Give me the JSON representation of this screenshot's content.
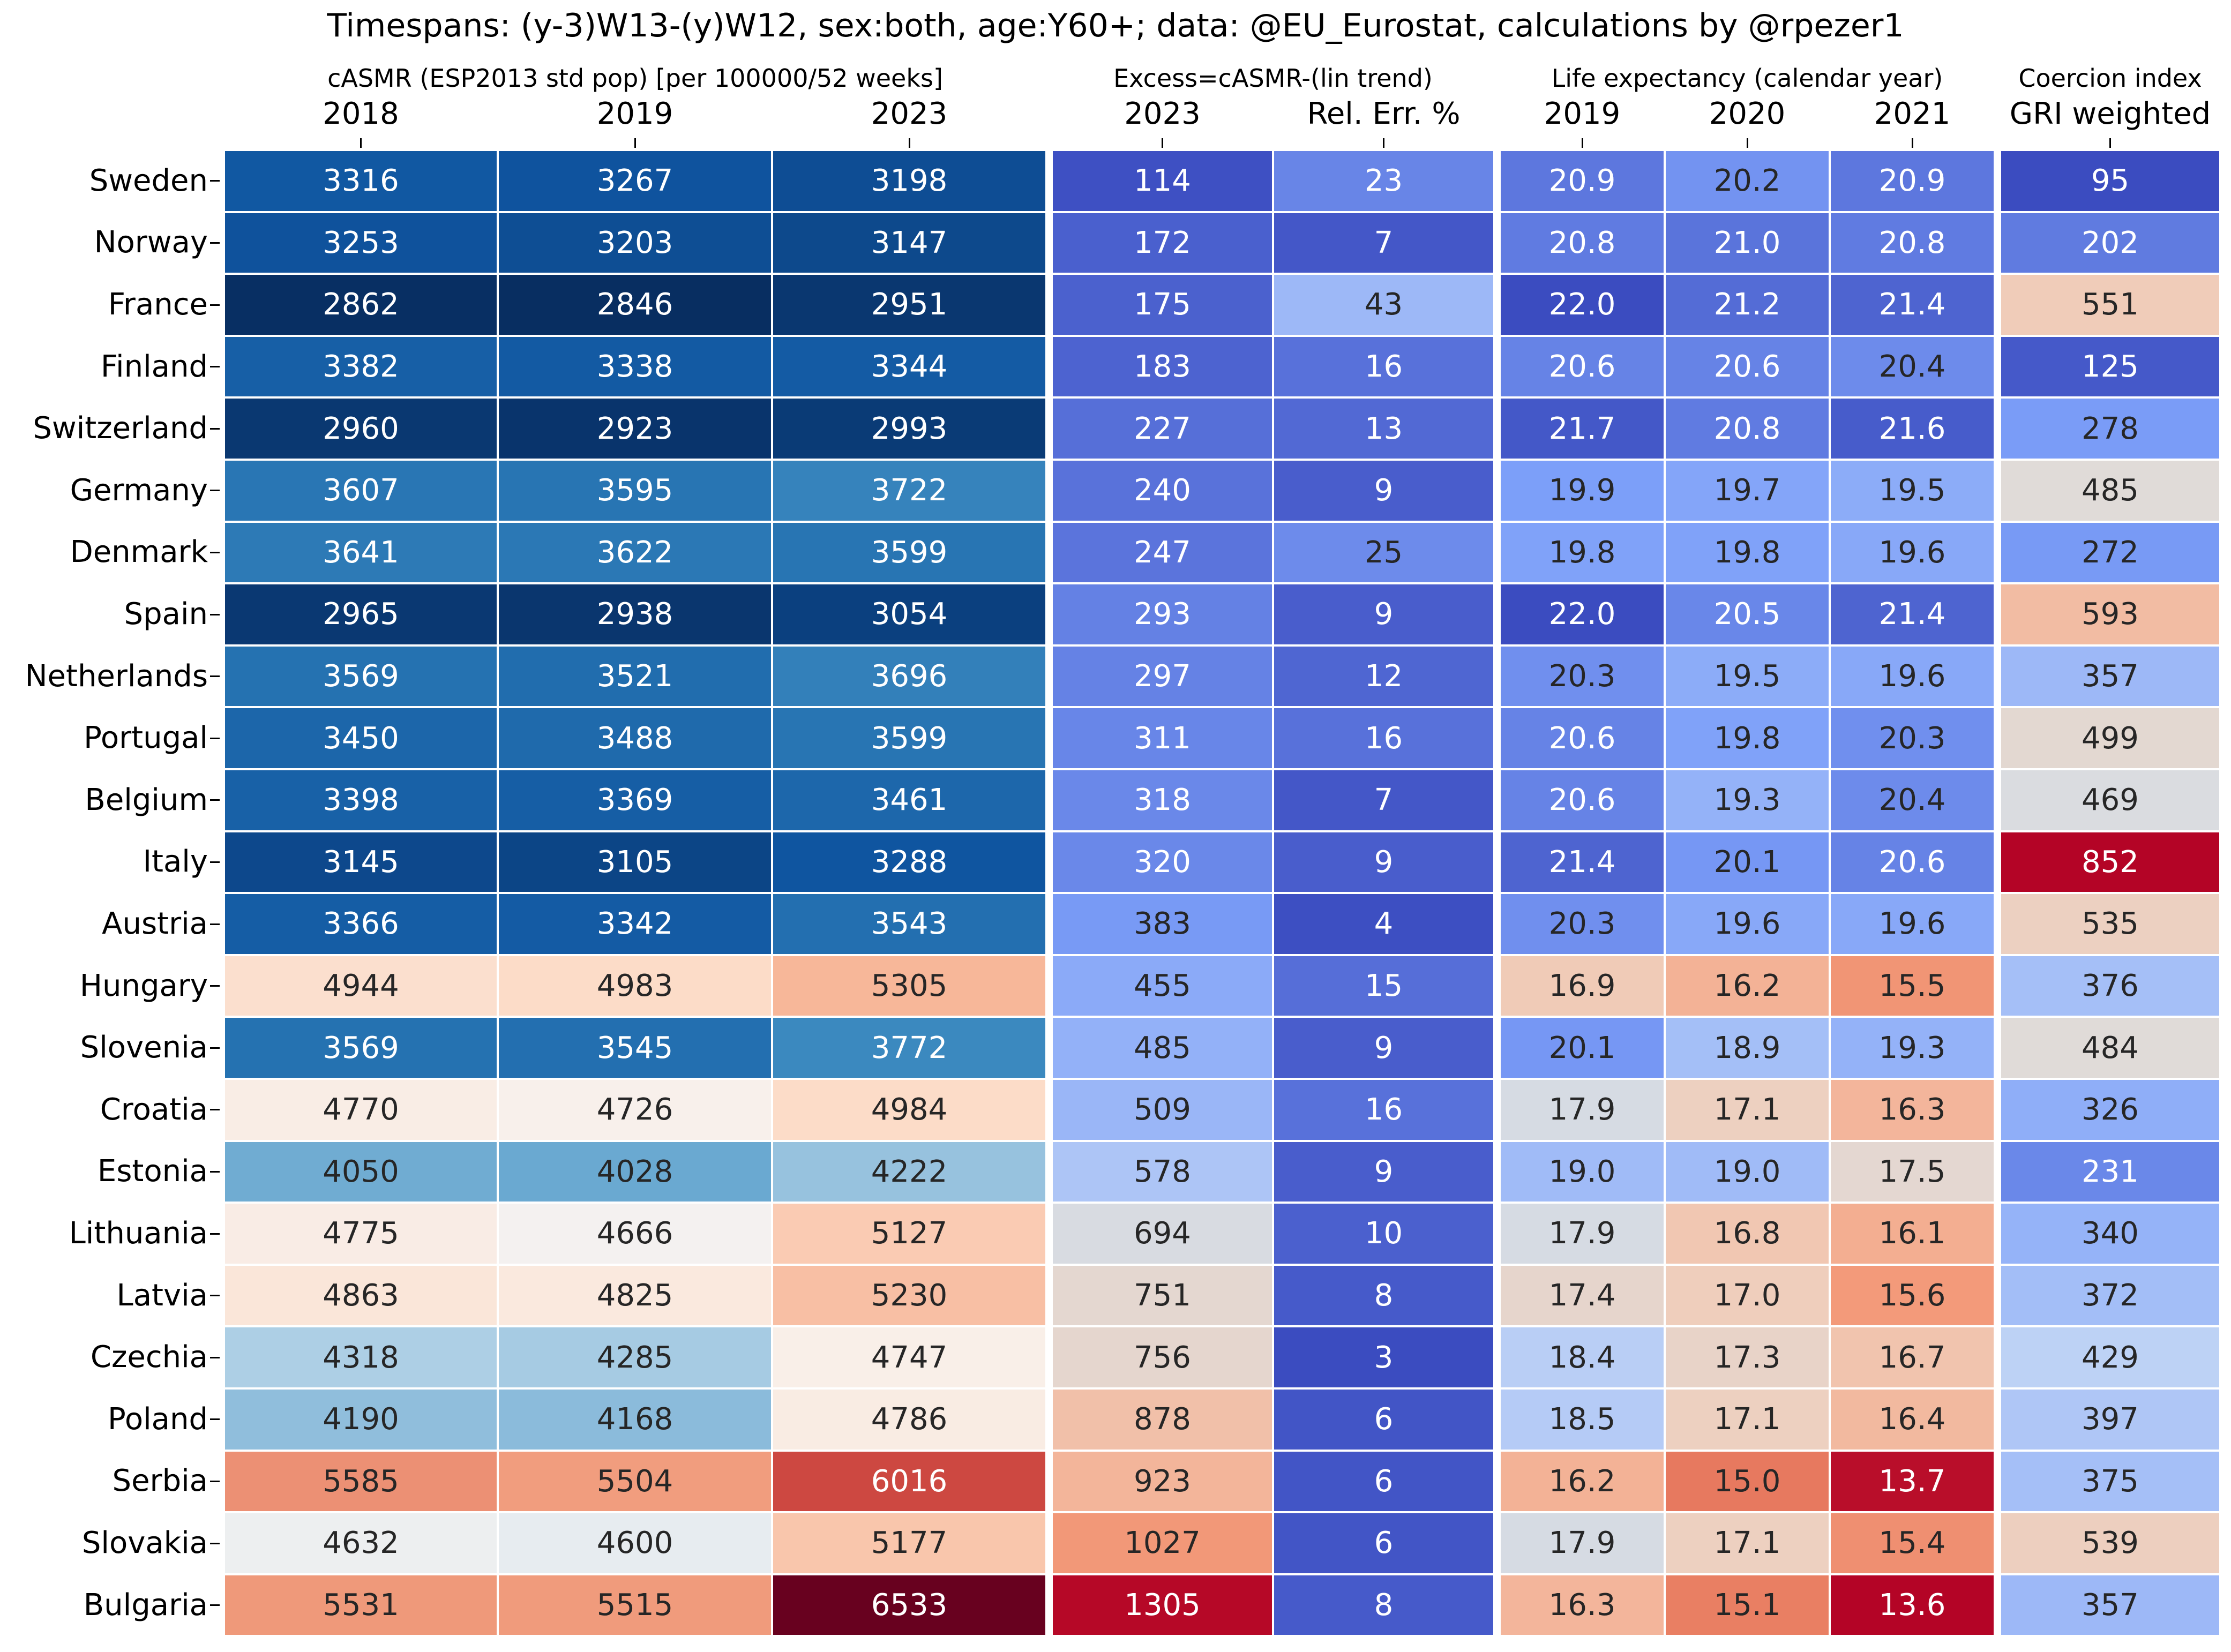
{
  "chart_data": {
    "type": "heatmap",
    "title": "Timespans: (y-3)W13-(y)W12, sex:both, age:Y60+; data: @EU_Eurostat, calculations by @rpezer1",
    "groups": [
      {
        "label": "cASMR (ESP2013 std pop) [per 100000/52 weeks]",
        "columns": [
          "2018",
          "2019",
          "2023"
        ],
        "colormap": "Blues-to-Reds",
        "vmin": 2840,
        "vmax": 6540
      },
      {
        "label": "Excess=cASMR-(lin trend)",
        "columns": [
          "2023",
          "Rel. Err. %"
        ],
        "colormap": "coolwarm",
        "vmin": [
          100,
          3
        ],
        "vmax": [
          1310,
          43
        ]
      },
      {
        "label": "Life expectancy (calendar year)",
        "columns": [
          "2019",
          "2020",
          "2021"
        ],
        "colormap": "coolwarm_r",
        "vmin": 13.6,
        "vmax": 22.0
      },
      {
        "label": "Coercion index",
        "columns": [
          "GRI weighted"
        ],
        "colormap": "coolwarm",
        "vmin": 95,
        "vmax": 852
      }
    ],
    "rows": [
      {
        "country": "Sweden",
        "values": [
          "3316",
          "3267",
          "3198",
          "114",
          "23",
          "20.9",
          "20.2",
          "20.9",
          "95"
        ]
      },
      {
        "country": "Norway",
        "values": [
          "3253",
          "3203",
          "3147",
          "172",
          "7",
          "20.8",
          "21.0",
          "20.8",
          "202"
        ]
      },
      {
        "country": "France",
        "values": [
          "2862",
          "2846",
          "2951",
          "175",
          "43",
          "22.0",
          "21.2",
          "21.4",
          "551"
        ]
      },
      {
        "country": "Finland",
        "values": [
          "3382",
          "3338",
          "3344",
          "183",
          "16",
          "20.6",
          "20.6",
          "20.4",
          "125"
        ]
      },
      {
        "country": "Switzerland",
        "values": [
          "2960",
          "2923",
          "2993",
          "227",
          "13",
          "21.7",
          "20.8",
          "21.6",
          "278"
        ]
      },
      {
        "country": "Germany",
        "values": [
          "3607",
          "3595",
          "3722",
          "240",
          "9",
          "19.9",
          "19.7",
          "19.5",
          "485"
        ]
      },
      {
        "country": "Denmark",
        "values": [
          "3641",
          "3622",
          "3599",
          "247",
          "25",
          "19.8",
          "19.8",
          "19.6",
          "272"
        ]
      },
      {
        "country": "Spain",
        "values": [
          "2965",
          "2938",
          "3054",
          "293",
          "9",
          "22.0",
          "20.5",
          "21.4",
          "593"
        ]
      },
      {
        "country": "Netherlands",
        "values": [
          "3569",
          "3521",
          "3696",
          "297",
          "12",
          "20.3",
          "19.5",
          "19.6",
          "357"
        ]
      },
      {
        "country": "Portugal",
        "values": [
          "3450",
          "3488",
          "3599",
          "311",
          "16",
          "20.6",
          "19.8",
          "20.3",
          "499"
        ]
      },
      {
        "country": "Belgium",
        "values": [
          "3398",
          "3369",
          "3461",
          "318",
          "7",
          "20.6",
          "19.3",
          "20.4",
          "469"
        ]
      },
      {
        "country": "Italy",
        "values": [
          "3145",
          "3105",
          "3288",
          "320",
          "9",
          "21.4",
          "20.1",
          "20.6",
          "852"
        ]
      },
      {
        "country": "Austria",
        "values": [
          "3366",
          "3342",
          "3543",
          "383",
          "4",
          "20.3",
          "19.6",
          "19.6",
          "535"
        ]
      },
      {
        "country": "Hungary",
        "values": [
          "4944",
          "4983",
          "5305",
          "455",
          "15",
          "16.9",
          "16.2",
          "15.5",
          "376"
        ]
      },
      {
        "country": "Slovenia",
        "values": [
          "3569",
          "3545",
          "3772",
          "485",
          "9",
          "20.1",
          "18.9",
          "19.3",
          "484"
        ]
      },
      {
        "country": "Croatia",
        "values": [
          "4770",
          "4726",
          "4984",
          "509",
          "16",
          "17.9",
          "17.1",
          "16.3",
          "326"
        ]
      },
      {
        "country": "Estonia",
        "values": [
          "4050",
          "4028",
          "4222",
          "578",
          "9",
          "19.0",
          "19.0",
          "17.5",
          "231"
        ]
      },
      {
        "country": "Lithuania",
        "values": [
          "4775",
          "4666",
          "5127",
          "694",
          "10",
          "17.9",
          "16.8",
          "16.1",
          "340"
        ]
      },
      {
        "country": "Latvia",
        "values": [
          "4863",
          "4825",
          "5230",
          "751",
          "8",
          "17.4",
          "17.0",
          "15.6",
          "372"
        ]
      },
      {
        "country": "Czechia",
        "values": [
          "4318",
          "4285",
          "4747",
          "756",
          "3",
          "18.4",
          "17.3",
          "16.7",
          "429"
        ]
      },
      {
        "country": "Poland",
        "values": [
          "4190",
          "4168",
          "4786",
          "878",
          "6",
          "18.5",
          "17.1",
          "16.4",
          "397"
        ]
      },
      {
        "country": "Serbia",
        "values": [
          "5585",
          "5504",
          "6016",
          "923",
          "6",
          "16.2",
          "15.0",
          "13.7",
          "375"
        ]
      },
      {
        "country": "Slovakia",
        "values": [
          "4632",
          "4600",
          "5177",
          "1027",
          "6",
          "17.9",
          "17.1",
          "15.4",
          "539"
        ]
      },
      {
        "country": "Bulgaria",
        "values": [
          "5531",
          "5515",
          "6533",
          "1305",
          "8",
          "16.3",
          "15.1",
          "13.6",
          "357"
        ]
      }
    ]
  }
}
